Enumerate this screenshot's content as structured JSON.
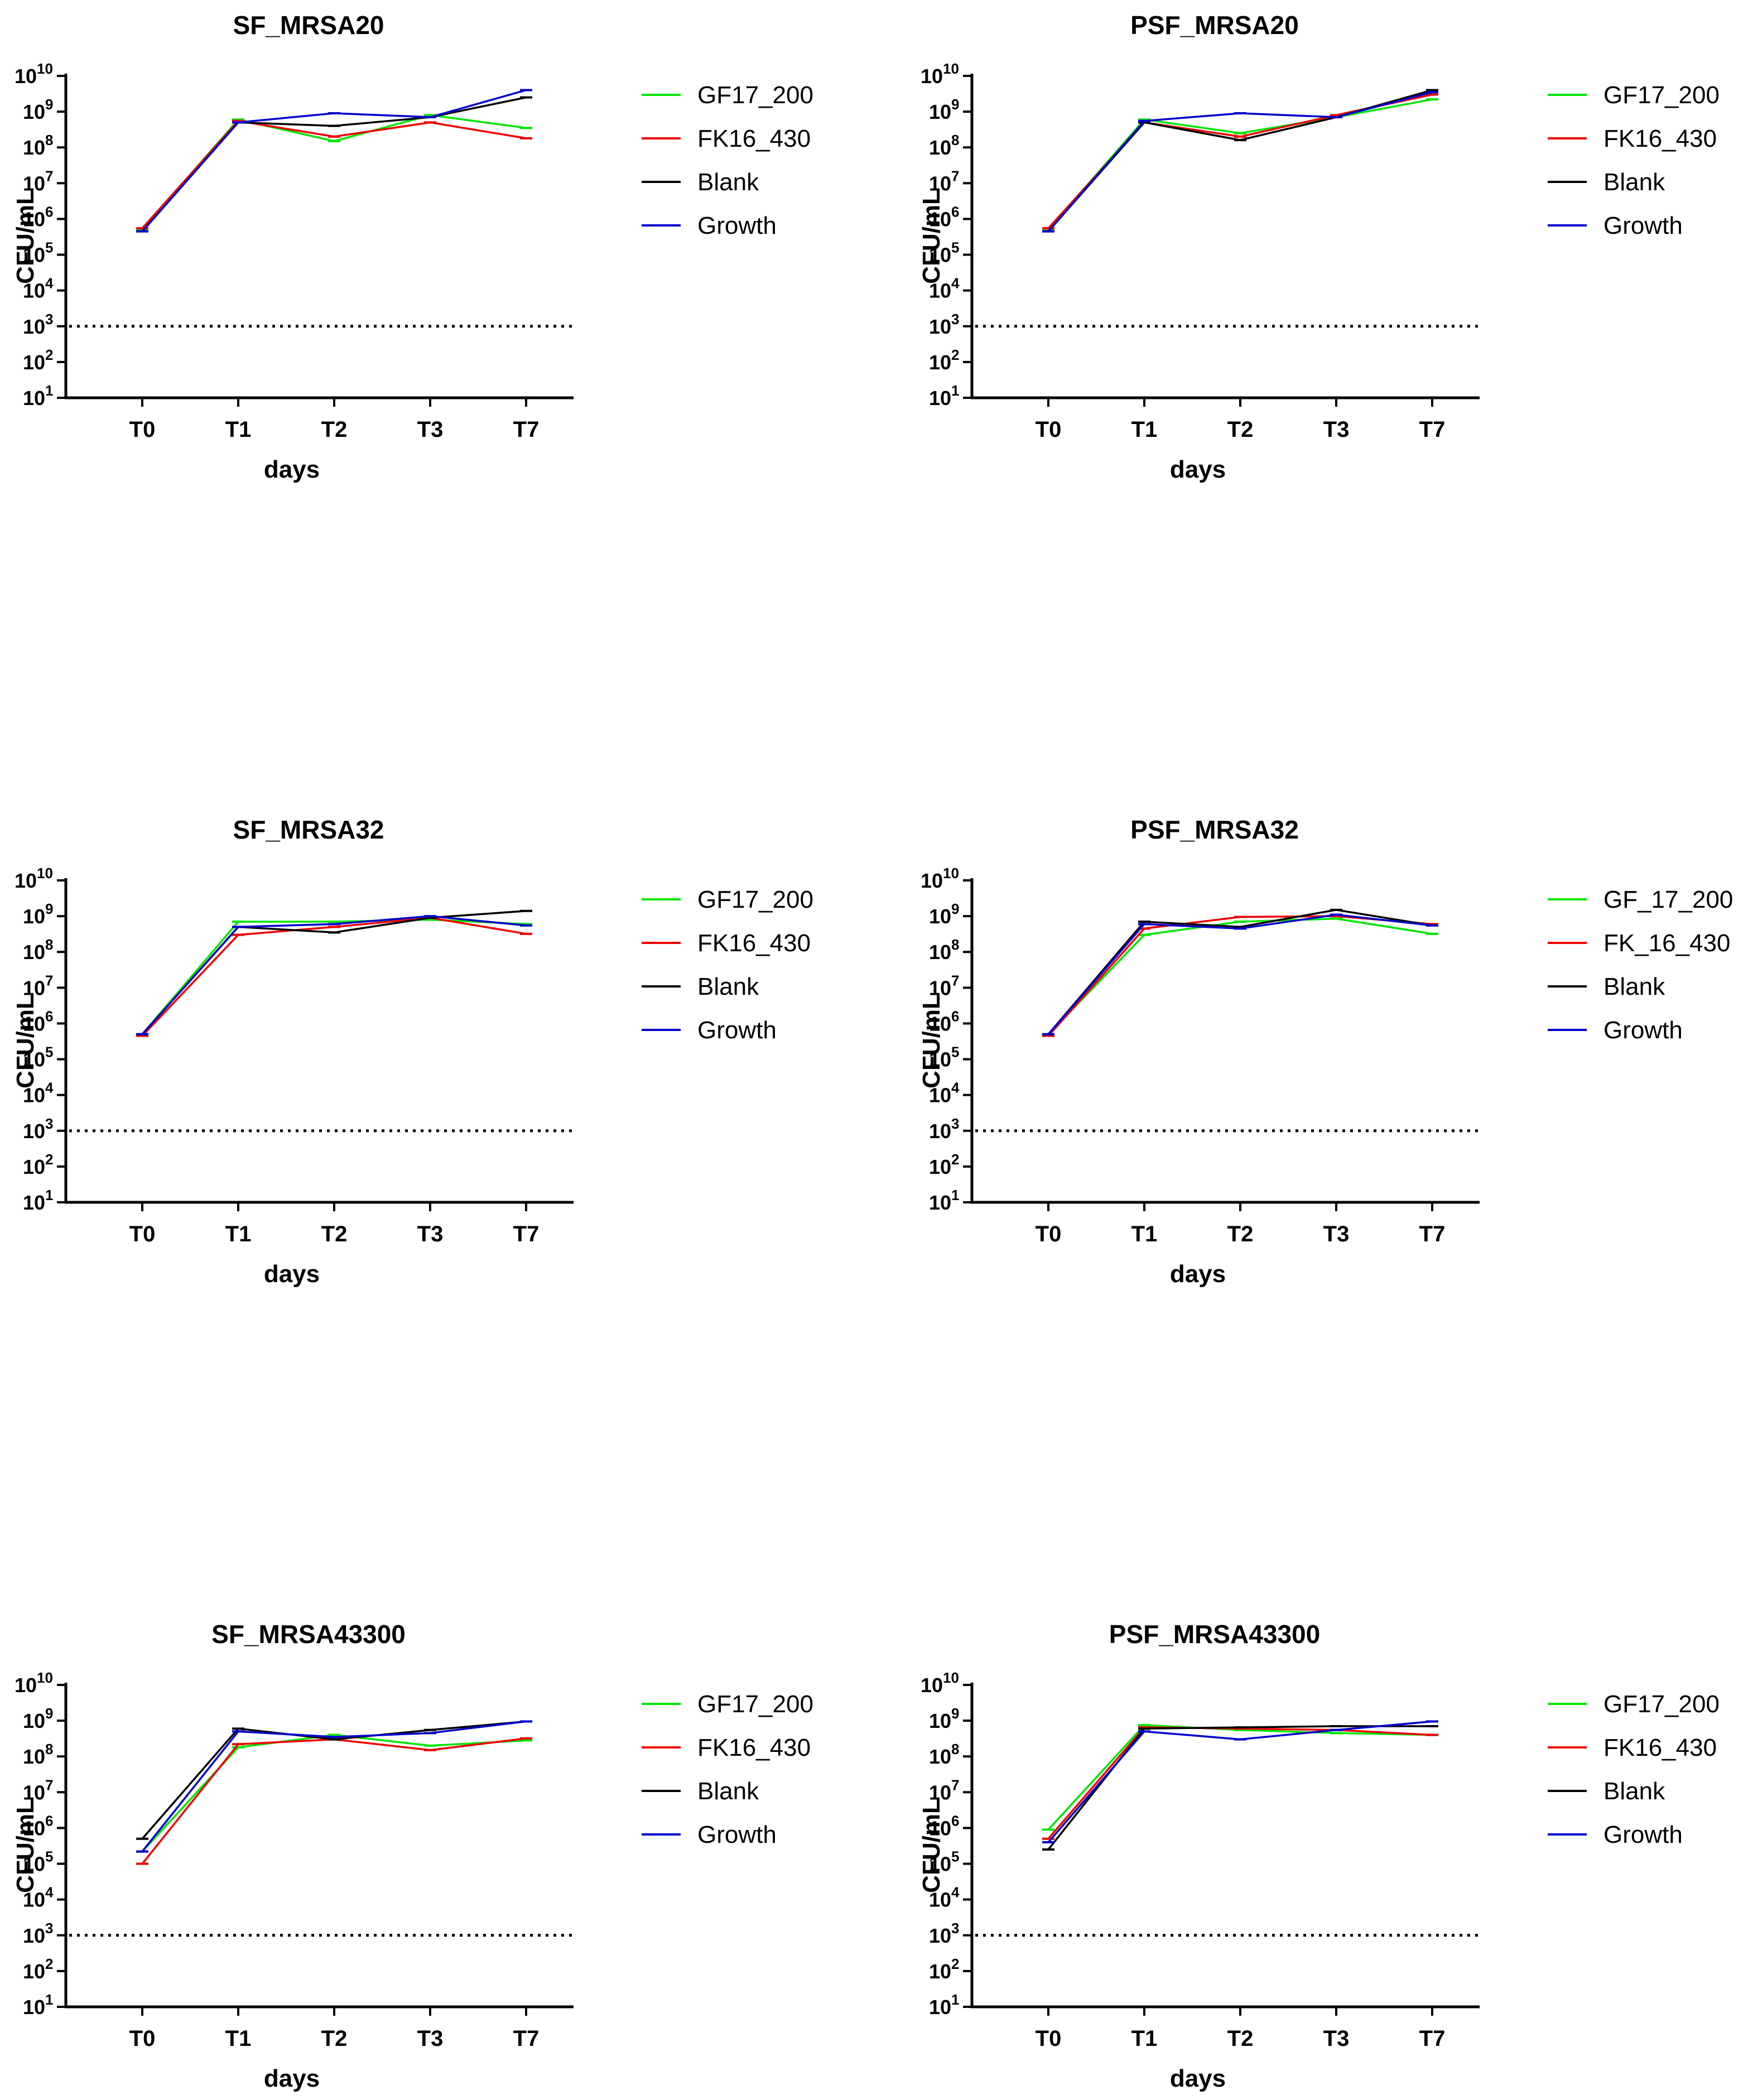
{
  "figure": {
    "ylabel": "CFU/mL",
    "xlabel": "days"
  },
  "colors": {
    "GF17_200": "#00e600",
    "FK16_430": "#ee0000",
    "Blank": "#000000",
    "Growth": "#0000cc"
  },
  "chart_data": [
    {
      "type": "line",
      "title": "SF_MRSA20",
      "xlabel": "days",
      "ylabel": "CFU/mL",
      "yscale": "log10",
      "ylim": [
        10,
        10000000000
      ],
      "categories": [
        "T0",
        "T1",
        "T2",
        "T3",
        "T7"
      ],
      "ytick_exponents": [
        "1",
        "2",
        "3",
        "4",
        "5",
        "6",
        "7",
        "8",
        "9",
        "10"
      ],
      "threshold": 1000,
      "legend_position": "right",
      "series": [
        {
          "name": "GF17_200",
          "color": "#00e600",
          "values": [
            500000,
            600000000,
            150000000,
            800000000,
            350000000
          ]
        },
        {
          "name": "FK16_430",
          "color": "#ee0000",
          "values": [
            550000,
            550000000,
            200000000,
            500000000,
            180000000
          ]
        },
        {
          "name": "Blank",
          "color": "#000000",
          "values": [
            450000,
            500000000,
            400000000,
            700000000,
            2500000000
          ]
        },
        {
          "name": "Growth",
          "color": "#0000cc",
          "values": [
            450000,
            500000000,
            900000000,
            700000000,
            4000000000
          ]
        }
      ]
    },
    {
      "type": "line",
      "title": "PSF_MRSA20",
      "xlabel": "days",
      "ylabel": "CFU/mL",
      "yscale": "log10",
      "ylim": [
        10,
        10000000000
      ],
      "categories": [
        "T0",
        "T1",
        "T2",
        "T3",
        "T7"
      ],
      "ytick_exponents": [
        "1",
        "2",
        "3",
        "4",
        "5",
        "6",
        "7",
        "8",
        "9",
        "10"
      ],
      "threshold": 1000,
      "legend_position": "right",
      "series": [
        {
          "name": "GF17_200",
          "color": "#00e600",
          "values": [
            500000,
            600000000,
            250000000,
            700000000,
            2200000000
          ]
        },
        {
          "name": "FK16_430",
          "color": "#ee0000",
          "values": [
            550000,
            500000000,
            200000000,
            800000000,
            3000000000
          ]
        },
        {
          "name": "Blank",
          "color": "#000000",
          "values": [
            450000,
            500000000,
            160000000,
            700000000,
            4000000000
          ]
        },
        {
          "name": "Growth",
          "color": "#0000cc",
          "values": [
            450000,
            550000000,
            900000000,
            700000000,
            3500000000
          ]
        }
      ]
    },
    {
      "type": "line",
      "title": "SF_MRSA32",
      "xlabel": "days",
      "ylabel": "CFU/mL",
      "yscale": "log10",
      "ylim": [
        10,
        10000000000
      ],
      "categories": [
        "T0",
        "T1",
        "T2",
        "T3",
        "T7"
      ],
      "ytick_exponents": [
        "1",
        "2",
        "3",
        "4",
        "5",
        "6",
        "7",
        "8",
        "9",
        "10"
      ],
      "threshold": 1000,
      "legend_position": "right",
      "series": [
        {
          "name": "GF17_200",
          "color": "#00e600",
          "values": [
            500000,
            700000000,
            700000000,
            800000000,
            600000000
          ]
        },
        {
          "name": "FK16_430",
          "color": "#ee0000",
          "values": [
            450000,
            300000000,
            500000000,
            900000000,
            320000000
          ]
        },
        {
          "name": "Blank",
          "color": "#000000",
          "values": [
            500000,
            500000000,
            350000000,
            900000000,
            1400000000
          ]
        },
        {
          "name": "Growth",
          "color": "#0000cc",
          "values": [
            500000,
            500000000,
            600000000,
            1000000000,
            550000000
          ]
        }
      ]
    },
    {
      "type": "line",
      "title": "PSF_MRSA32",
      "xlabel": "days",
      "ylabel": "CFU/mL",
      "yscale": "log10",
      "ylim": [
        10,
        10000000000
      ],
      "categories": [
        "T0",
        "T1",
        "T2",
        "T3",
        "T7"
      ],
      "ytick_exponents": [
        "1",
        "2",
        "3",
        "4",
        "5",
        "6",
        "7",
        "8",
        "9",
        "10"
      ],
      "threshold": 1000,
      "legend_position": "right",
      "series": [
        {
          "name": "GF_17_200",
          "color": "#00e600",
          "values": [
            500000,
            300000000,
            700000000,
            850000000,
            320000000
          ]
        },
        {
          "name": "FK_16_430",
          "color": "#ee0000",
          "values": [
            450000,
            450000000,
            950000000,
            1000000000,
            600000000
          ]
        },
        {
          "name": "Blank",
          "color": "#000000",
          "values": [
            500000,
            700000000,
            500000000,
            1500000000,
            550000000
          ]
        },
        {
          "name": "Growth",
          "color": "#0000cc",
          "values": [
            500000,
            600000000,
            450000000,
            1100000000,
            550000000
          ]
        }
      ]
    },
    {
      "type": "line",
      "title": "SF_MRSA43300",
      "xlabel": "days",
      "ylabel": "CFU/mL",
      "yscale": "log10",
      "ylim": [
        10,
        10000000000
      ],
      "categories": [
        "T0",
        "T1",
        "T2",
        "T3",
        "T7"
      ],
      "ytick_exponents": [
        "1",
        "2",
        "3",
        "4",
        "5",
        "6",
        "7",
        "8",
        "9",
        "10"
      ],
      "threshold": 1000,
      "legend_position": "right",
      "series": [
        {
          "name": "GF17_200",
          "color": "#00e600",
          "values": [
            220000,
            180000000,
            400000000,
            200000000,
            280000000
          ]
        },
        {
          "name": "FK16_430",
          "color": "#ee0000",
          "values": [
            100000,
            220000000,
            300000000,
            150000000,
            320000000
          ]
        },
        {
          "name": "Blank",
          "color": "#000000",
          "values": [
            500000,
            600000000,
            300000000,
            550000000,
            950000000
          ]
        },
        {
          "name": "Growth",
          "color": "#0000cc",
          "values": [
            220000,
            500000000,
            350000000,
            450000000,
            950000000
          ]
        }
      ]
    },
    {
      "type": "line",
      "title": "PSF_MRSA43300",
      "xlabel": "days",
      "ylabel": "CFU/mL",
      "yscale": "log10",
      "ylim": [
        10,
        10000000000
      ],
      "categories": [
        "T0",
        "T1",
        "T2",
        "T3",
        "T7"
      ],
      "ytick_exponents": [
        "1",
        "2",
        "3",
        "4",
        "5",
        "6",
        "7",
        "8",
        "9",
        "10"
      ],
      "threshold": 1000,
      "legend_position": "right",
      "series": [
        {
          "name": "GF17_200",
          "color": "#00e600",
          "values": [
            900000,
            750000000,
            550000000,
            450000000,
            400000000
          ]
        },
        {
          "name": "FK16_430",
          "color": "#ee0000",
          "values": [
            500000,
            650000000,
            600000000,
            550000000,
            400000000
          ]
        },
        {
          "name": "Blank",
          "color": "#000000",
          "values": [
            250000,
            600000000,
            650000000,
            700000000,
            700000000
          ]
        },
        {
          "name": "Growth",
          "color": "#0000cc",
          "values": [
            400000,
            500000000,
            300000000,
            550000000,
            950000000
          ]
        }
      ]
    }
  ]
}
